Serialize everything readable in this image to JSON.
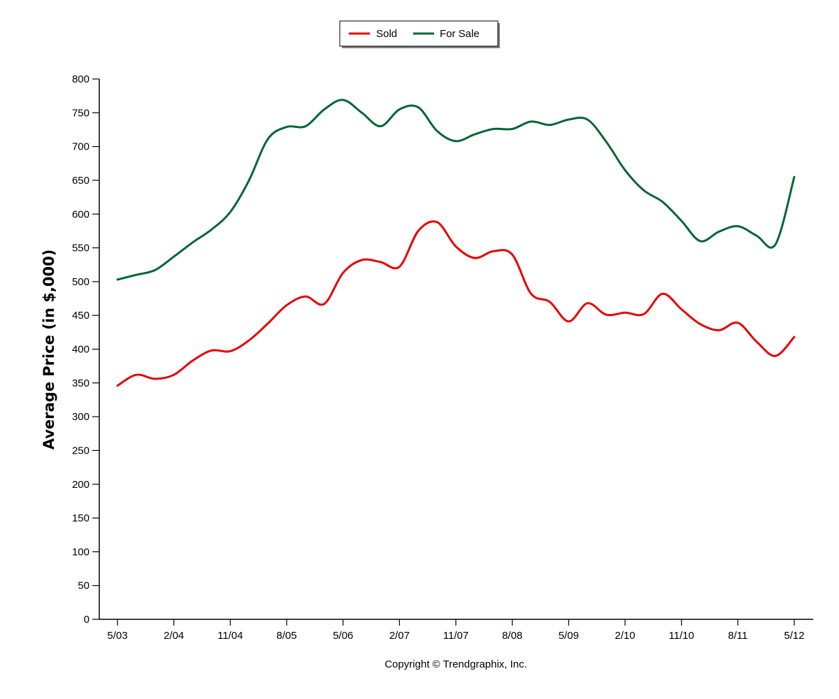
{
  "chart_data": {
    "type": "line",
    "ylabel": "Average Price (in $,000)",
    "ylim": [
      0,
      800
    ],
    "yticks": [
      0,
      50,
      100,
      150,
      200,
      250,
      300,
      350,
      400,
      450,
      500,
      550,
      600,
      650,
      700,
      750,
      800
    ],
    "x_tick_labels": [
      "5/03",
      "2/04",
      "11/04",
      "8/05",
      "5/06",
      "2/07",
      "11/07",
      "8/08",
      "5/09",
      "2/10",
      "11/10",
      "8/11",
      "5/12"
    ],
    "x_tick_step_months": 9,
    "x_start": "5/03",
    "x_period": "month",
    "legend": {
      "placement": "top-center"
    },
    "grid": false,
    "series": [
      {
        "name": "Sold",
        "color": "#e60000",
        "points": [
          [
            "5/03",
            346
          ],
          [
            "8/03",
            362
          ],
          [
            "11/03",
            356
          ],
          [
            "2/04",
            362
          ],
          [
            "5/04",
            383
          ],
          [
            "8/04",
            398
          ],
          [
            "11/04",
            397
          ],
          [
            "2/05",
            413
          ],
          [
            "5/05",
            438
          ],
          [
            "8/05",
            465
          ],
          [
            "11/05",
            478
          ],
          [
            "2/06",
            467
          ],
          [
            "5/06",
            513
          ],
          [
            "8/06",
            532
          ],
          [
            "11/06",
            529
          ],
          [
            "2/07",
            522
          ],
          [
            "5/07",
            575
          ],
          [
            "8/07",
            588
          ],
          [
            "11/07",
            552
          ],
          [
            "2/08",
            535
          ],
          [
            "5/08",
            545
          ],
          [
            "8/08",
            540
          ],
          [
            "11/08",
            482
          ],
          [
            "2/09",
            470
          ],
          [
            "5/09",
            441
          ],
          [
            "8/09",
            468
          ],
          [
            "11/09",
            451
          ],
          [
            "2/10",
            454
          ],
          [
            "5/10",
            452
          ],
          [
            "8/10",
            482
          ],
          [
            "11/10",
            459
          ],
          [
            "2/11",
            437
          ],
          [
            "5/11",
            428
          ],
          [
            "8/11",
            439
          ],
          [
            "11/11",
            411
          ],
          [
            "2/12",
            390
          ],
          [
            "5/12",
            418
          ]
        ]
      },
      {
        "name": "For Sale",
        "color": "#006633",
        "points": [
          [
            "5/03",
            503
          ],
          [
            "8/03",
            510
          ],
          [
            "11/03",
            517
          ],
          [
            "2/04",
            537
          ],
          [
            "5/04",
            558
          ],
          [
            "8/04",
            577
          ],
          [
            "11/04",
            603
          ],
          [
            "2/05",
            650
          ],
          [
            "5/05",
            711
          ],
          [
            "8/05",
            729
          ],
          [
            "11/05",
            730
          ],
          [
            "2/06",
            755
          ],
          [
            "5/06",
            769
          ],
          [
            "8/06",
            750
          ],
          [
            "11/06",
            730
          ],
          [
            "2/07",
            755
          ],
          [
            "5/07",
            758
          ],
          [
            "8/07",
            723
          ],
          [
            "11/07",
            708
          ],
          [
            "2/08",
            718
          ],
          [
            "5/08",
            726
          ],
          [
            "8/08",
            726
          ],
          [
            "11/08",
            737
          ],
          [
            "2/09",
            732
          ],
          [
            "5/09",
            740
          ],
          [
            "8/09",
            740
          ],
          [
            "11/09",
            707
          ],
          [
            "2/10",
            665
          ],
          [
            "5/10",
            635
          ],
          [
            "8/10",
            618
          ],
          [
            "11/10",
            590
          ],
          [
            "2/11",
            560
          ],
          [
            "5/11",
            574
          ],
          [
            "8/11",
            582
          ],
          [
            "11/11",
            568
          ],
          [
            "2/12",
            555
          ],
          [
            "5/12",
            655
          ]
        ]
      }
    ]
  },
  "footer": {
    "copyright": "Copyright © Trendgraphix, Inc."
  }
}
